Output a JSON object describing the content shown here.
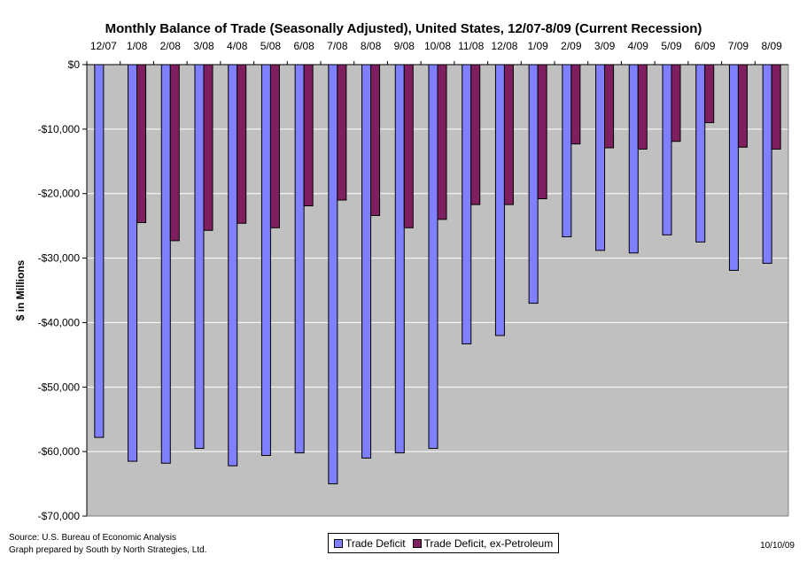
{
  "chart_data": {
    "type": "bar",
    "title": "Monthly Balance of Trade (Seasonally Adjusted), United States, 12/07-8/09 (Current Recession)",
    "ylabel": "$ in Millions",
    "xlabel": "",
    "ylim": [
      -70000,
      0
    ],
    "y_ticks": [
      0,
      -10000,
      -20000,
      -30000,
      -40000,
      -50000,
      -60000,
      -70000
    ],
    "y_tick_labels": [
      "$0",
      "-$10,000",
      "-$20,000",
      "-$30,000",
      "-$40,000",
      "-$50,000",
      "-$60,000",
      "-$70,000"
    ],
    "x_axis_position": "top",
    "grid": true,
    "legend_position": "bottom-center",
    "categories": [
      "12/07",
      "1/08",
      "2/08",
      "3/08",
      "4/08",
      "5/08",
      "6/08",
      "7/08",
      "8/08",
      "9/08",
      "10/08",
      "11/08",
      "12/08",
      "1/09",
      "2/09",
      "3/09",
      "4/09",
      "5/09",
      "6/09",
      "7/09",
      "8/09"
    ],
    "series": [
      {
        "name": "Trade Deficit",
        "color": "#8080ff",
        "values": [
          -57800,
          -61500,
          -61800,
          -59500,
          -62200,
          -60600,
          -60200,
          -65000,
          -61000,
          -60200,
          -59500,
          -43300,
          -42000,
          -37000,
          -26700,
          -28800,
          -29200,
          -26400,
          -27500,
          -31900,
          -30800
        ]
      },
      {
        "name": "Trade Deficit, ex-Petroleum",
        "color": "#7f1f5f",
        "values": [
          null,
          -24500,
          -27300,
          -25700,
          -24600,
          -25300,
          -21900,
          -21000,
          -23400,
          -25300,
          -24000,
          -21700,
          -21700,
          -20800,
          -12300,
          -12900,
          -13100,
          -11900,
          -9000,
          -12800,
          -13100
        ]
      }
    ],
    "plot_background": "#c0c0c0",
    "notes": {
      "source": "Source: U.S. Bureau of Economic Analysis",
      "prepared_by": "Graph prepared by South by North Strategies, Ltd.",
      "date": "10/10/09"
    }
  }
}
